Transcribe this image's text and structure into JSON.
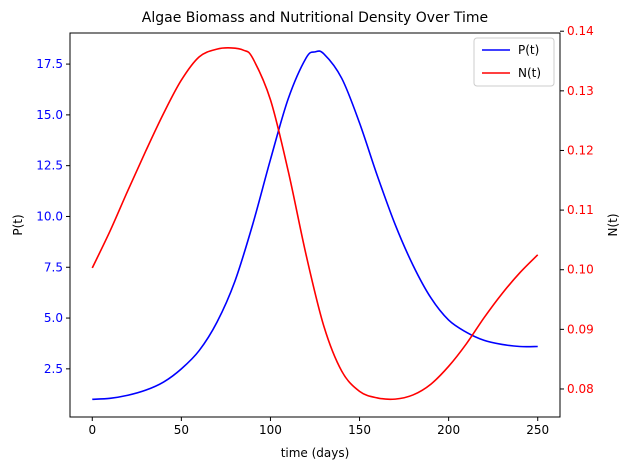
{
  "chart_data": {
    "type": "line",
    "title": "Algae Biomass and Nutritional Density Over Time",
    "xlabel": "time (days)",
    "ylabel_left": "P(t)",
    "ylabel_right": "N(t)",
    "xlim": [
      -12.5,
      262.5
    ],
    "ylim_left": [
      0.13,
      19.03
    ],
    "ylim_right": [
      0.0753,
      0.1397
    ],
    "x_ticks": [
      0,
      50,
      100,
      150,
      200,
      250
    ],
    "y_left_ticks": [
      2.5,
      5.0,
      7.5,
      10.0,
      12.5,
      15.0,
      17.5
    ],
    "y_right_ticks": [
      0.08,
      0.09,
      0.1,
      0.11,
      0.12,
      0.13,
      0.14
    ],
    "grid": false,
    "legend_position": "top-right",
    "colors": {
      "left_axis": "#0000ff",
      "right_axis": "#ff0000"
    },
    "series": [
      {
        "name": "P(t)",
        "axis": "left",
        "color": "#0000ff",
        "x": [
          0,
          10,
          20,
          30,
          40,
          50,
          60,
          70,
          80,
          90,
          100,
          110,
          120,
          125,
          130,
          140,
          150,
          160,
          170,
          180,
          190,
          200,
          210,
          220,
          230,
          240,
          250
        ],
        "y": [
          1.0,
          1.05,
          1.2,
          1.45,
          1.85,
          2.5,
          3.4,
          4.8,
          6.8,
          9.6,
          12.8,
          15.8,
          17.8,
          18.1,
          18.0,
          16.8,
          14.6,
          12.0,
          9.6,
          7.6,
          6.0,
          4.9,
          4.3,
          3.9,
          3.7,
          3.6,
          3.6
        ]
      },
      {
        "name": "N(t)",
        "axis": "right",
        "color": "#ff0000",
        "x": [
          0,
          10,
          20,
          30,
          40,
          50,
          60,
          70,
          78,
          85,
          90,
          100,
          110,
          120,
          130,
          140,
          150,
          160,
          170,
          180,
          190,
          200,
          210,
          220,
          230,
          240,
          250
        ],
        "y": [
          0.1003,
          0.1065,
          0.1133,
          0.1199,
          0.1262,
          0.1318,
          0.1357,
          0.137,
          0.1372,
          0.1368,
          0.1355,
          0.1285,
          0.1165,
          0.1025,
          0.0905,
          0.083,
          0.0796,
          0.0785,
          0.0783,
          0.079,
          0.0808,
          0.0838,
          0.0876,
          0.092,
          0.096,
          0.0995,
          0.1025
        ]
      }
    ]
  }
}
